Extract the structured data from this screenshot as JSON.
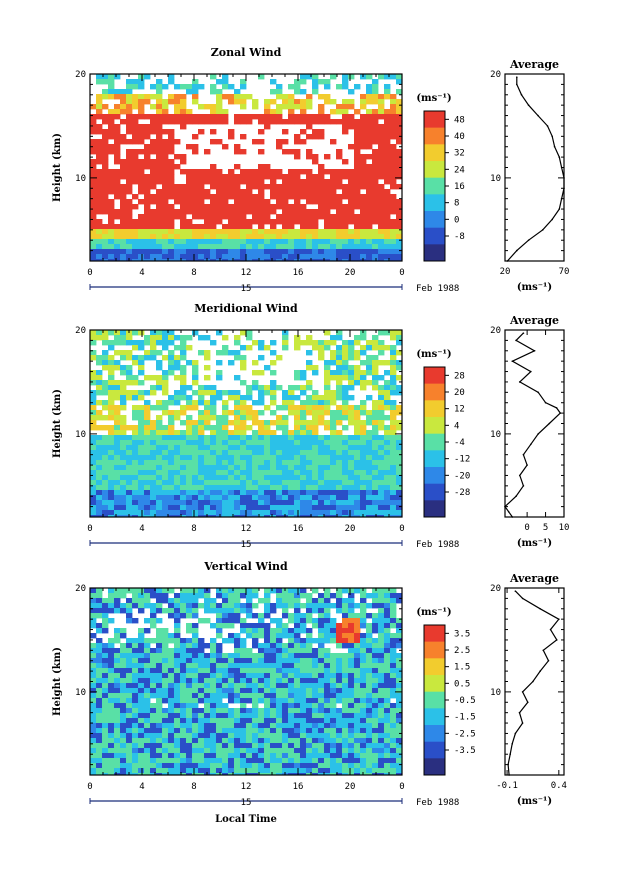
{
  "chart_data": [
    {
      "type": "heatmap",
      "title": "Zonal Wind",
      "ylabel": "Height (km)",
      "xlabel": "",
      "x_ticks": [
        "0",
        "4",
        "8",
        "12",
        "16",
        "20",
        "0"
      ],
      "y_ticks": [
        "10",
        "20"
      ],
      "xlim": [
        0,
        24
      ],
      "ylim": [
        2,
        20
      ],
      "date_day": "15",
      "date_label": "Feb 1988",
      "colorbar": {
        "unit": "(ms⁻¹)",
        "labels": [
          "48",
          "40",
          "32",
          "24",
          "16",
          "8",
          "0",
          "-8"
        ],
        "colors": [
          "#e83a2e",
          "#f7812c",
          "#f2cc2e",
          "#c9e83e",
          "#59e0a6",
          "#2bc1e8",
          "#2e88e8",
          "#2a4fc8",
          "#2a2f80"
        ]
      },
      "profile": {
        "title": "Average",
        "x_ticks": [
          "20",
          "70"
        ],
        "xlim": [
          20,
          70
        ],
        "unit": "(ms⁻¹)",
        "height_km": [
          2,
          3,
          4,
          5,
          6,
          7,
          8,
          9,
          10,
          11,
          12,
          13,
          14,
          15,
          16,
          17,
          18,
          19,
          19.7
        ],
        "values": [
          22,
          30,
          40,
          52,
          60,
          66,
          68,
          70,
          70,
          68,
          66,
          62,
          60,
          56,
          48,
          40,
          34,
          30,
          30
        ]
      }
    },
    {
      "type": "heatmap",
      "title": "Meridional Wind",
      "ylabel": "Height (km)",
      "xlabel": "",
      "x_ticks": [
        "0",
        "4",
        "8",
        "12",
        "16",
        "20",
        "0"
      ],
      "y_ticks": [
        "10",
        "20"
      ],
      "xlim": [
        0,
        24
      ],
      "ylim": [
        2,
        20
      ],
      "date_day": "15",
      "date_label": "Feb 1988",
      "colorbar": {
        "unit": "(ms⁻¹)",
        "labels": [
          "28",
          "20",
          "12",
          "4",
          "-4",
          "-12",
          "-20",
          "-28"
        ],
        "colors": [
          "#e83a2e",
          "#f7812c",
          "#f2cc2e",
          "#c9e83e",
          "#59e0a6",
          "#2bc1e8",
          "#2e88e8",
          "#2a4fc8",
          "#2a2f80"
        ]
      },
      "profile": {
        "title": "Average",
        "x_ticks": [
          "0",
          "5",
          "10"
        ],
        "xlim": [
          -6,
          10
        ],
        "unit": "(ms⁻¹)",
        "height_km": [
          2,
          2.5,
          3,
          4,
          5,
          6,
          7,
          8,
          9,
          10,
          11,
          12,
          12.5,
          13,
          14,
          15,
          16,
          17,
          18,
          19,
          19.7
        ],
        "values": [
          -4,
          -5,
          -6,
          -3,
          -1,
          -2,
          0,
          -1,
          1,
          3,
          6,
          9,
          8,
          5,
          3,
          -2,
          1,
          -4,
          2,
          -3,
          -1
        ]
      }
    },
    {
      "type": "heatmap",
      "title": "Vertical Wind",
      "ylabel": "Height (km)",
      "xlabel": "Local Time",
      "x_ticks": [
        "0",
        "4",
        "8",
        "12",
        "16",
        "20",
        "0"
      ],
      "y_ticks": [
        "10",
        "20"
      ],
      "xlim": [
        0,
        24
      ],
      "ylim": [
        2,
        20
      ],
      "date_day": "15",
      "date_label": "Feb 1988",
      "colorbar": {
        "unit": "(ms⁻¹)",
        "labels": [
          "3.5",
          "2.5",
          "1.5",
          "0.5",
          "-0.5",
          "-1.5",
          "-2.5",
          "-3.5"
        ],
        "colors": [
          "#e83a2e",
          "#f7812c",
          "#f2cc2e",
          "#c9e83e",
          "#59e0a6",
          "#2bc1e8",
          "#2e88e8",
          "#2a4fc8",
          "#2a2f80"
        ]
      },
      "profile": {
        "title": "Average",
        "x_ticks": [
          "-0.1",
          "0.4"
        ],
        "xlim": [
          -0.12,
          0.45
        ],
        "unit": "(ms⁻¹)",
        "height_km": [
          2,
          3,
          4,
          5,
          6,
          7,
          8,
          9,
          10,
          11,
          12,
          13,
          14,
          15,
          16,
          17,
          18,
          19,
          19.7
        ],
        "values": [
          -0.08,
          -0.09,
          -0.07,
          -0.05,
          -0.02,
          0.05,
          0.02,
          0.1,
          0.05,
          0.15,
          0.22,
          0.3,
          0.25,
          0.38,
          0.32,
          0.4,
          0.22,
          0.05,
          -0.02
        ]
      }
    }
  ]
}
